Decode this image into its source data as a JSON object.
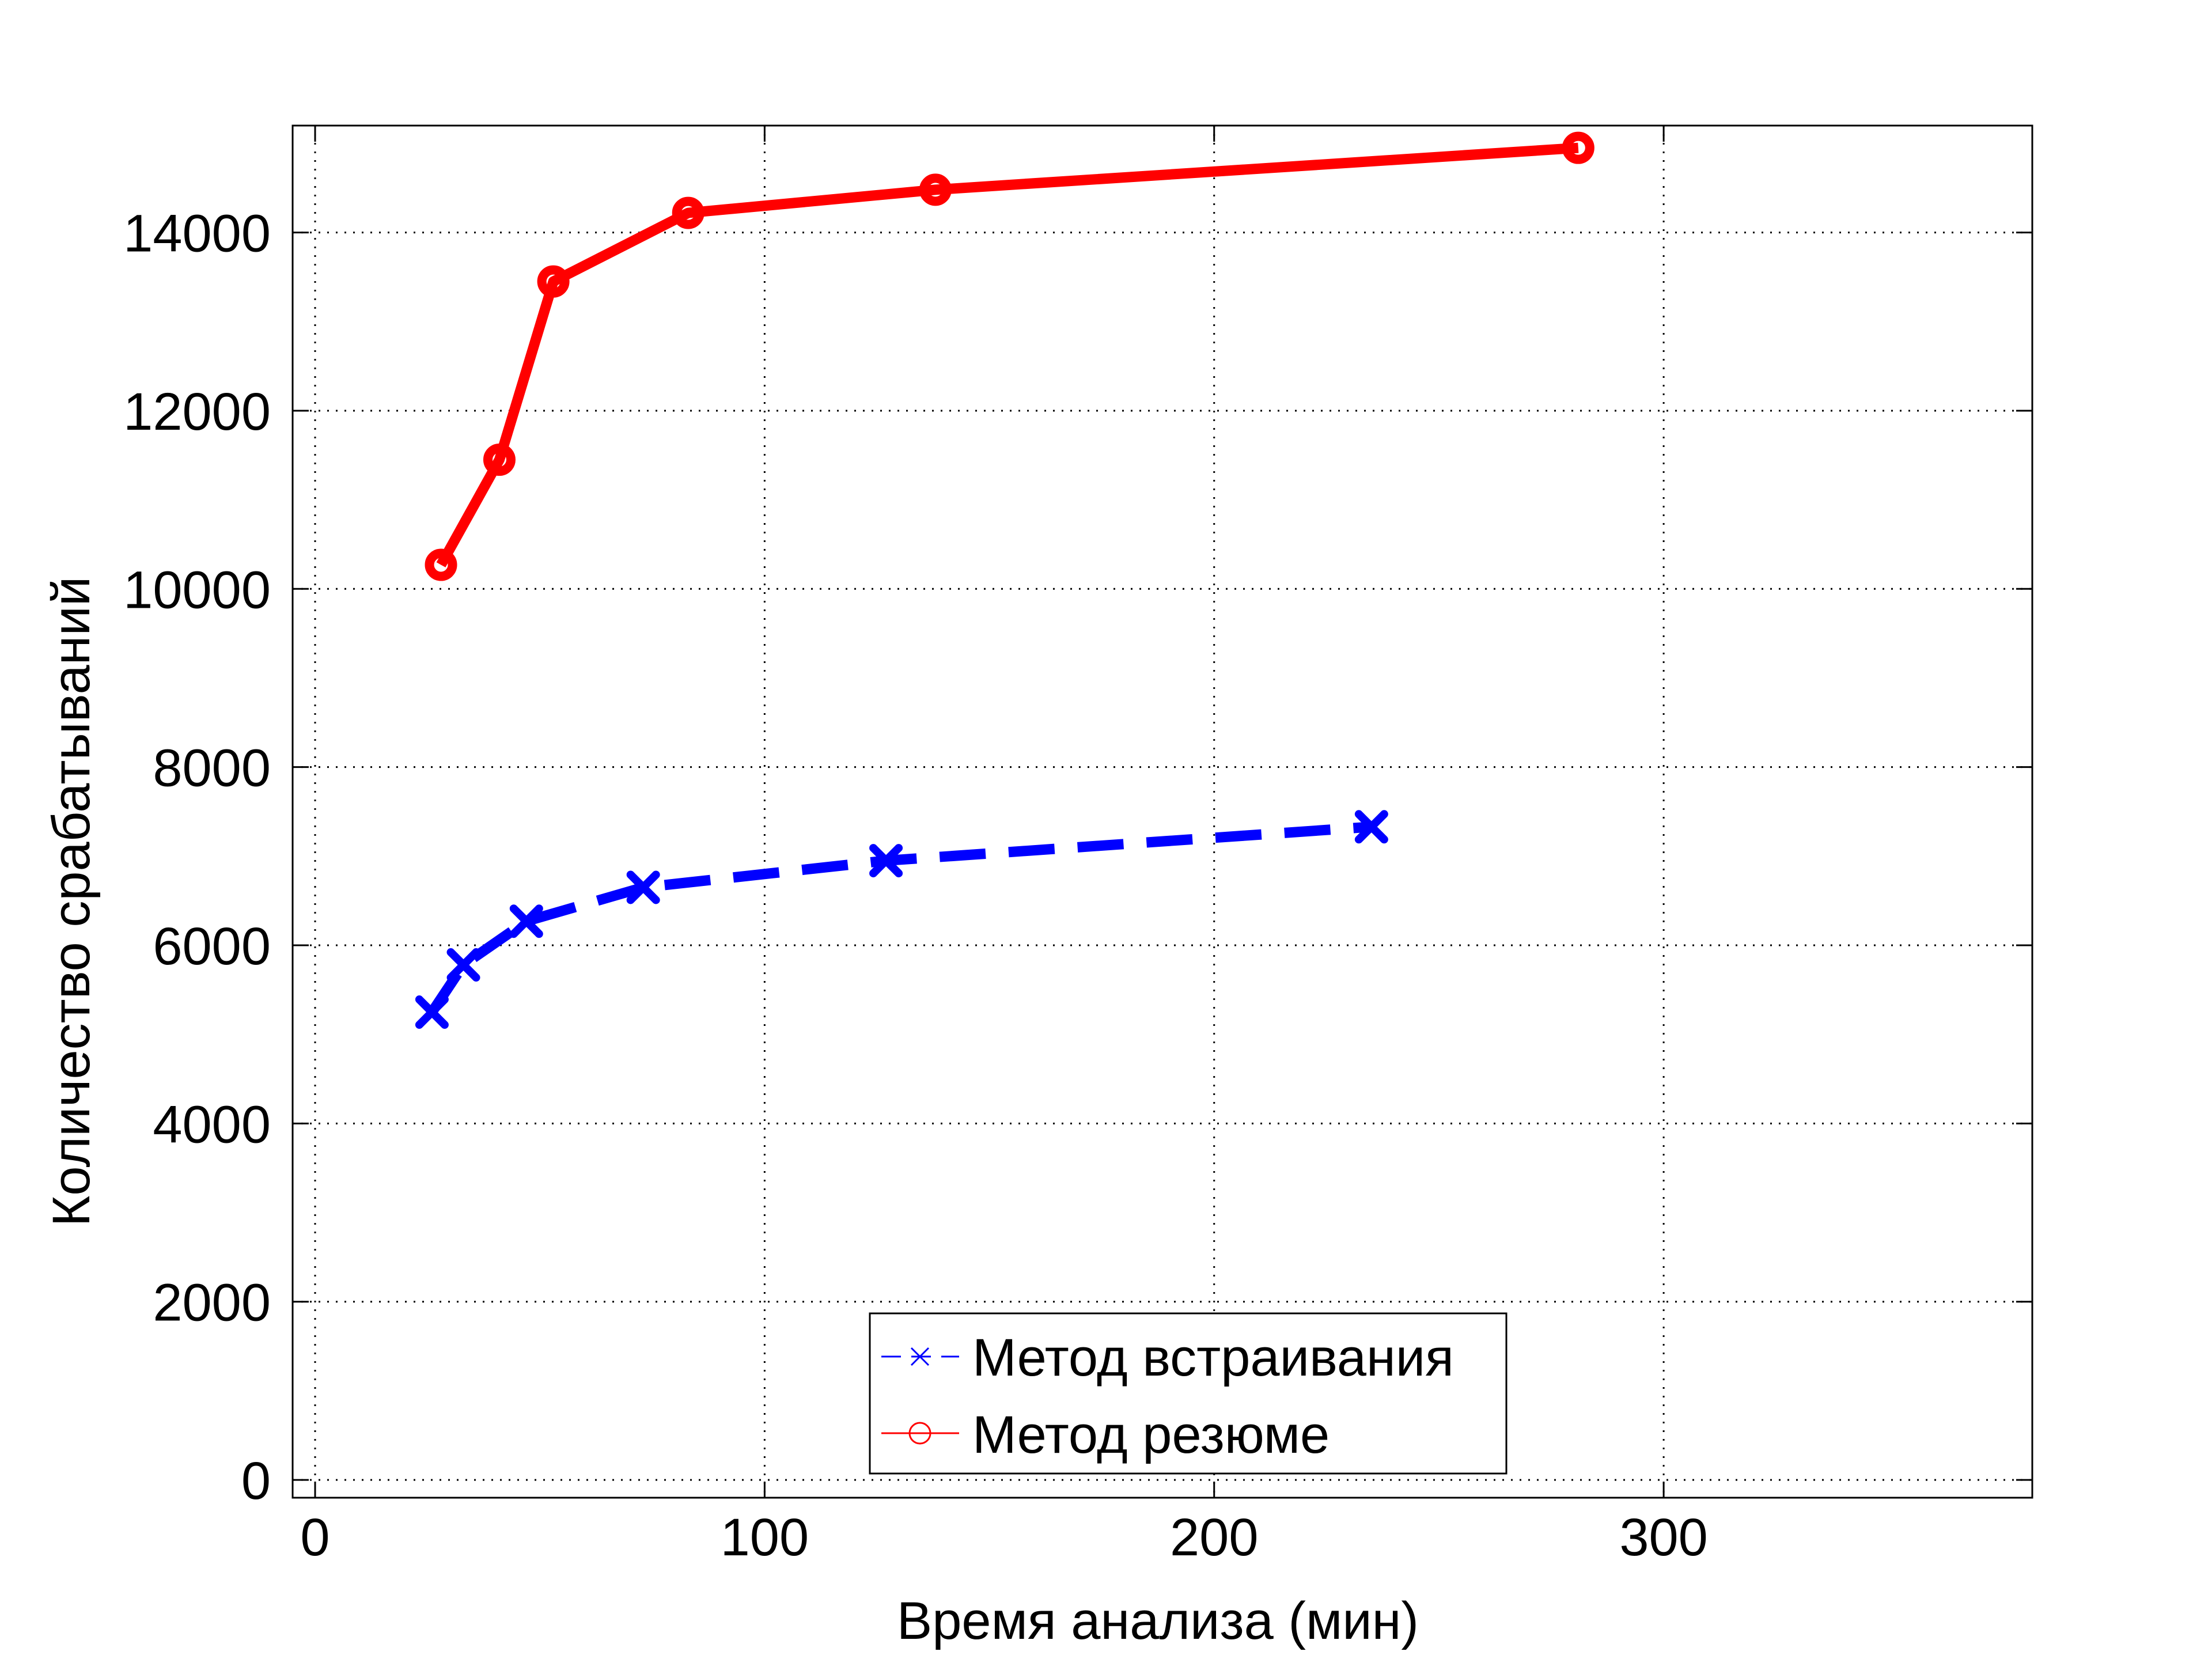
{
  "chart_data": {
    "type": "line",
    "xlabel": "Время анализа (мин)",
    "ylabel": "Количество срабатываний",
    "xlim": [
      -5,
      382
    ],
    "ylim": [
      -200,
      15200
    ],
    "xticks": [
      0,
      100,
      200,
      300
    ],
    "yticks": [
      0,
      2000,
      4000,
      6000,
      8000,
      10000,
      12000,
      14000
    ],
    "grid": true,
    "legend_position": "bottom-center",
    "series": [
      {
        "name": "Метод встраивания",
        "color": "#0000ff",
        "line_style": "dashed",
        "marker": "x",
        "x": [
          26,
          33,
          47,
          73,
          127,
          235
        ],
        "y": [
          5250,
          5780,
          6270,
          6650,
          6950,
          7330
        ]
      },
      {
        "name": "Метод резюме",
        "color": "#ff0000",
        "line_style": "solid",
        "marker": "circle",
        "x": [
          28,
          41,
          53,
          83,
          138,
          281
        ],
        "y": [
          10270,
          11450,
          13450,
          14220,
          14480,
          14950
        ]
      }
    ]
  }
}
